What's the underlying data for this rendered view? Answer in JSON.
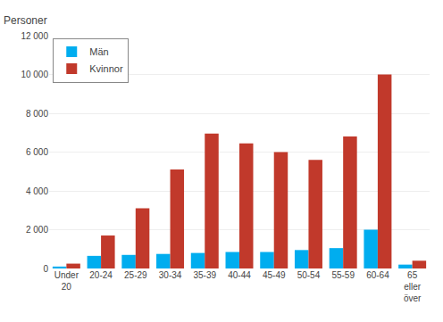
{
  "chart_data": {
    "type": "bar",
    "ylabel": "Personer",
    "categories": [
      "Under\n20",
      "20-24",
      "25-29",
      "30-34",
      "35-39",
      "40-44",
      "45-49",
      "50-54",
      "55-59",
      "60-64",
      "65\neller\növer"
    ],
    "series": [
      {
        "name": "Män",
        "color": "#00adef",
        "values": [
          100,
          650,
          700,
          750,
          800,
          850,
          850,
          950,
          1050,
          2000,
          200
        ]
      },
      {
        "name": "Kvinnor",
        "color": "#c1392b",
        "values": [
          250,
          1700,
          3100,
          5100,
          6950,
          6450,
          6000,
          5600,
          6800,
          10000,
          400
        ]
      }
    ],
    "ylim": [
      0,
      12000
    ],
    "yticks": [
      0,
      {
        "value": 2000,
        "label": "2 000"
      },
      {
        "value": 4000,
        "label": "4 000"
      },
      {
        "value": 6000,
        "label": "6 000"
      },
      {
        "value": 8000,
        "label": "8 000"
      },
      {
        "value": 10000,
        "label": "10 000"
      },
      {
        "value": 12000,
        "label": "12 000"
      }
    ],
    "grid": true,
    "legend": "upper left"
  }
}
